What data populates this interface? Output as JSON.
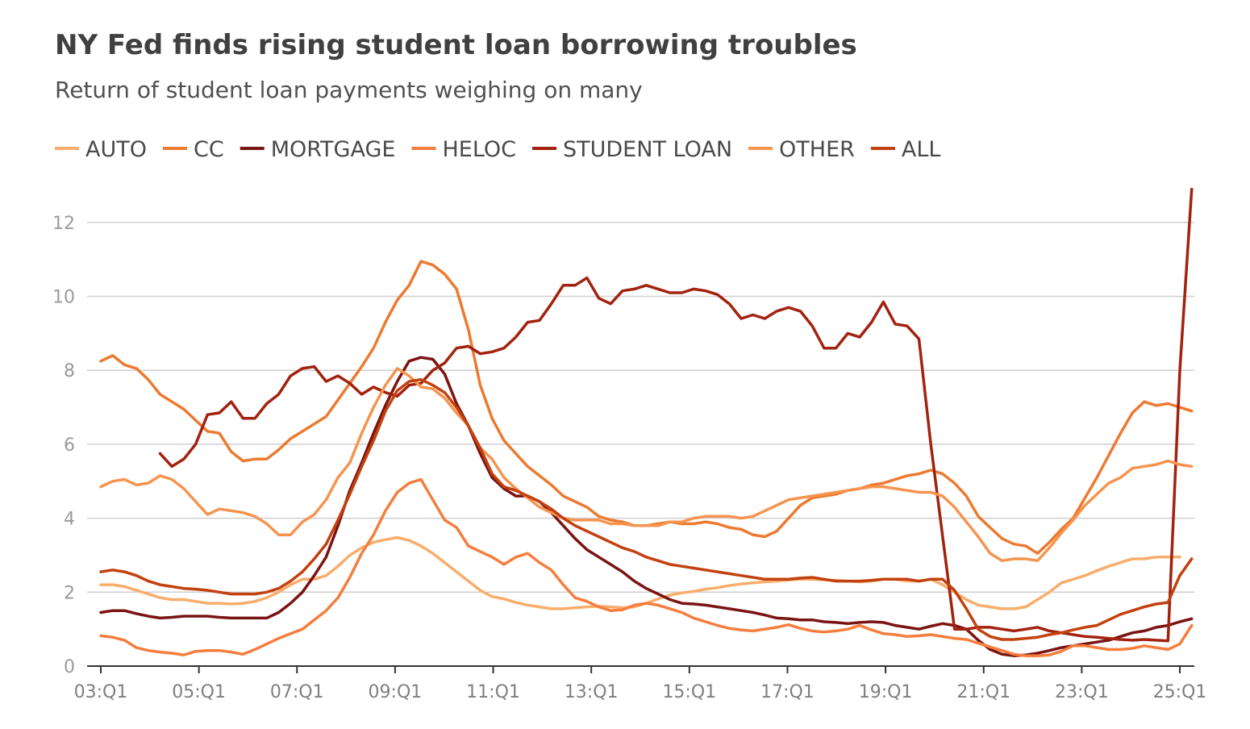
{
  "chart_data": {
    "type": "line",
    "title": "NY Fed finds rising student loan borrowing troubles",
    "subtitle": "Return of student loan payments weighing on many",
    "xlabel": "",
    "ylabel": "",
    "x_start": "03:Q1",
    "x_end": "25:Q1",
    "x_ticks": [
      "03:Q1",
      "05:Q1",
      "07:Q1",
      "09:Q1",
      "11:Q1",
      "13:Q1",
      "15:Q1",
      "17:Q1",
      "19:Q1",
      "21:Q1",
      "23:Q1",
      "25:Q1"
    ],
    "y_ticks": [
      0,
      2,
      4,
      6,
      8,
      10,
      12
    ],
    "ylim": [
      0,
      13
    ],
    "grid": "horizontal",
    "legend_position": "top",
    "series": [
      {
        "name": "AUTO",
        "color": "#f9ad6b",
        "values": [
          2.2,
          2.2,
          2.15,
          2.05,
          1.95,
          1.85,
          1.8,
          1.8,
          1.75,
          1.7,
          1.7,
          1.68,
          1.7,
          1.75,
          1.85,
          2.0,
          2.2,
          2.35,
          2.35,
          2.45,
          2.7,
          3.0,
          3.2,
          3.35,
          3.42,
          3.48,
          3.4,
          3.25,
          3.05,
          2.8,
          2.55,
          2.3,
          2.05,
          1.88,
          1.82,
          1.72,
          1.65,
          1.6,
          1.55,
          1.55,
          1.58,
          1.6,
          1.62,
          1.6,
          1.58,
          1.6,
          1.7,
          1.82,
          1.92,
          1.98,
          2.02,
          2.08,
          2.12,
          2.18,
          2.22,
          2.25,
          2.28,
          2.3,
          2.33,
          2.35,
          2.35,
          2.33,
          2.32,
          2.3,
          2.28,
          2.3,
          2.35,
          2.35,
          2.3,
          2.3,
          2.35,
          2.2,
          2.0,
          1.8,
          1.65,
          1.6,
          1.55,
          1.55,
          1.6,
          1.8,
          2.0,
          2.25,
          2.35,
          2.45,
          2.58,
          2.7,
          2.8,
          2.9,
          2.9,
          2.95,
          2.95,
          2.95
        ]
      },
      {
        "name": "CC",
        "color": "#ec7a30",
        "values": [
          8.25,
          8.4,
          8.15,
          8.05,
          7.75,
          7.35,
          7.15,
          6.95,
          6.65,
          6.35,
          6.3,
          5.8,
          5.55,
          5.6,
          5.6,
          5.85,
          6.15,
          6.35,
          6.55,
          6.75,
          7.2,
          7.65,
          8.1,
          8.6,
          9.3,
          9.9,
          10.3,
          10.95,
          10.85,
          10.6,
          10.2,
          9.1,
          7.6,
          6.7,
          6.1,
          5.75,
          5.4,
          5.15,
          4.9,
          4.6,
          4.45,
          4.3,
          4.05,
          3.95,
          3.9,
          3.8,
          3.8,
          3.85,
          3.9,
          3.85,
          3.85,
          3.9,
          3.85,
          3.75,
          3.7,
          3.55,
          3.5,
          3.65,
          4.0,
          4.35,
          4.55,
          4.6,
          4.65,
          4.75,
          4.8,
          4.9,
          4.95,
          5.05,
          5.15,
          5.2,
          5.3,
          5.2,
          4.95,
          4.6,
          4.05,
          3.75,
          3.45,
          3.3,
          3.25,
          3.05,
          3.35,
          3.7,
          4.0,
          4.55,
          5.1,
          5.7,
          6.3,
          6.85,
          7.15,
          7.05,
          7.1,
          7.0,
          6.9
        ]
      },
      {
        "name": "MORTGAGE",
        "color": "#7a1412",
        "values": [
          1.45,
          1.5,
          1.5,
          1.42,
          1.35,
          1.3,
          1.32,
          1.35,
          1.35,
          1.35,
          1.32,
          1.3,
          1.3,
          1.3,
          1.3,
          1.45,
          1.7,
          2.0,
          2.45,
          2.95,
          3.8,
          4.75,
          5.5,
          6.3,
          7.05,
          7.7,
          8.25,
          8.35,
          8.3,
          7.9,
          7.1,
          6.5,
          5.75,
          5.1,
          4.8,
          4.6,
          4.6,
          4.45,
          4.15,
          3.8,
          3.45,
          3.15,
          2.95,
          2.75,
          2.55,
          2.3,
          2.1,
          1.95,
          1.8,
          1.7,
          1.68,
          1.65,
          1.6,
          1.55,
          1.5,
          1.45,
          1.38,
          1.3,
          1.28,
          1.25,
          1.25,
          1.2,
          1.18,
          1.15,
          1.18,
          1.2,
          1.18,
          1.1,
          1.05,
          1.0,
          1.08,
          1.15,
          1.1,
          1.0,
          0.7,
          0.45,
          0.32,
          0.28,
          0.3,
          0.35,
          0.42,
          0.5,
          0.55,
          0.6,
          0.65,
          0.7,
          0.8,
          0.9,
          0.95,
          1.05,
          1.1,
          1.2,
          1.28
        ]
      },
      {
        "name": "HELOC",
        "color": "#f57e3e",
        "values": [
          0.82,
          0.78,
          0.7,
          0.5,
          0.42,
          0.38,
          0.35,
          0.3,
          0.4,
          0.42,
          0.42,
          0.38,
          0.32,
          0.45,
          0.6,
          0.75,
          0.88,
          1.0,
          1.25,
          1.5,
          1.85,
          2.4,
          3.05,
          3.55,
          4.2,
          4.7,
          4.95,
          5.05,
          4.5,
          3.95,
          3.75,
          3.25,
          3.1,
          2.95,
          2.75,
          2.95,
          3.05,
          2.8,
          2.6,
          2.2,
          1.85,
          1.75,
          1.6,
          1.5,
          1.52,
          1.65,
          1.7,
          1.65,
          1.55,
          1.45,
          1.3,
          1.2,
          1.1,
          1.02,
          0.98,
          0.95,
          1.0,
          1.05,
          1.12,
          1.02,
          0.95,
          0.92,
          0.95,
          1.0,
          1.1,
          0.98,
          0.88,
          0.85,
          0.8,
          0.82,
          0.85,
          0.8,
          0.75,
          0.72,
          0.62,
          0.52,
          0.42,
          0.32,
          0.28,
          0.28,
          0.3,
          0.4,
          0.55,
          0.55,
          0.5,
          0.45,
          0.45,
          0.48,
          0.55,
          0.5,
          0.45,
          0.6,
          1.1
        ]
      },
      {
        "name": "STUDENT LOAN",
        "color": "#a2220f",
        "values": [
          null,
          null,
          null,
          null,
          null,
          5.75,
          5.4,
          5.6,
          6.0,
          6.8,
          6.85,
          7.15,
          6.7,
          6.7,
          7.1,
          7.35,
          7.85,
          8.05,
          8.1,
          7.7,
          7.85,
          7.65,
          7.35,
          7.55,
          7.4,
          7.3,
          7.6,
          7.65,
          8.0,
          8.2,
          8.6,
          8.65,
          8.45,
          8.5,
          8.6,
          8.9,
          9.3,
          9.35,
          9.8,
          10.3,
          10.3,
          10.5,
          9.95,
          9.8,
          10.15,
          10.2,
          10.3,
          10.2,
          10.1,
          10.1,
          10.2,
          10.15,
          10.05,
          9.8,
          9.4,
          9.5,
          9.4,
          9.6,
          9.7,
          9.6,
          9.2,
          8.6,
          8.6,
          9.0,
          8.9,
          9.3,
          9.85,
          9.25,
          9.2,
          8.85,
          6.0,
          3.5,
          1.0,
          1.0,
          1.05,
          1.05,
          1.0,
          0.95,
          1.0,
          1.05,
          0.95,
          0.9,
          0.85,
          0.8,
          0.78,
          0.75,
          0.72,
          0.7,
          0.72,
          0.7,
          0.68,
          8.0,
          12.9
        ]
      },
      {
        "name": "OTHER",
        "color": "#f6944f",
        "values": [
          4.85,
          5.0,
          5.05,
          4.9,
          4.95,
          5.15,
          5.05,
          4.8,
          4.45,
          4.1,
          4.25,
          4.2,
          4.15,
          4.05,
          3.85,
          3.55,
          3.55,
          3.9,
          4.1,
          4.5,
          5.1,
          5.5,
          6.3,
          7.0,
          7.6,
          8.05,
          7.85,
          7.55,
          7.5,
          7.25,
          6.85,
          6.5,
          5.9,
          5.6,
          5.1,
          4.8,
          4.55,
          4.3,
          4.15,
          4.0,
          3.95,
          3.95,
          3.95,
          3.85,
          3.85,
          3.8,
          3.8,
          3.8,
          3.9,
          3.9,
          4.0,
          4.05,
          4.05,
          4.05,
          4.0,
          4.05,
          4.2,
          4.35,
          4.5,
          4.55,
          4.6,
          4.65,
          4.7,
          4.75,
          4.8,
          4.85,
          4.85,
          4.8,
          4.75,
          4.7,
          4.7,
          4.6,
          4.3,
          3.9,
          3.5,
          3.05,
          2.85,
          2.9,
          2.9,
          2.85,
          3.2,
          3.6,
          3.95,
          4.35,
          4.65,
          4.95,
          5.1,
          5.35,
          5.4,
          5.45,
          5.55,
          5.45,
          5.4
        ]
      },
      {
        "name": "ALL",
        "color": "#c2410e",
        "values": [
          2.55,
          2.6,
          2.55,
          2.45,
          2.3,
          2.2,
          2.15,
          2.1,
          2.08,
          2.05,
          2.0,
          1.95,
          1.95,
          1.95,
          2.0,
          2.1,
          2.3,
          2.55,
          2.9,
          3.3,
          3.95,
          4.65,
          5.4,
          6.1,
          6.9,
          7.45,
          7.7,
          7.75,
          7.6,
          7.4,
          7.0,
          6.5,
          5.9,
          5.2,
          4.85,
          4.75,
          4.6,
          4.45,
          4.25,
          4.0,
          3.8,
          3.65,
          3.5,
          3.35,
          3.2,
          3.1,
          2.95,
          2.85,
          2.75,
          2.7,
          2.65,
          2.6,
          2.55,
          2.5,
          2.45,
          2.4,
          2.35,
          2.35,
          2.35,
          2.38,
          2.4,
          2.35,
          2.3,
          2.3,
          2.3,
          2.32,
          2.35,
          2.35,
          2.35,
          2.3,
          2.35,
          2.35,
          2.05,
          1.55,
          1.0,
          0.8,
          0.72,
          0.72,
          0.75,
          0.78,
          0.85,
          0.9,
          0.98,
          1.05,
          1.1,
          1.25,
          1.4,
          1.5,
          1.6,
          1.68,
          1.72,
          2.45,
          2.9
        ]
      }
    ]
  }
}
